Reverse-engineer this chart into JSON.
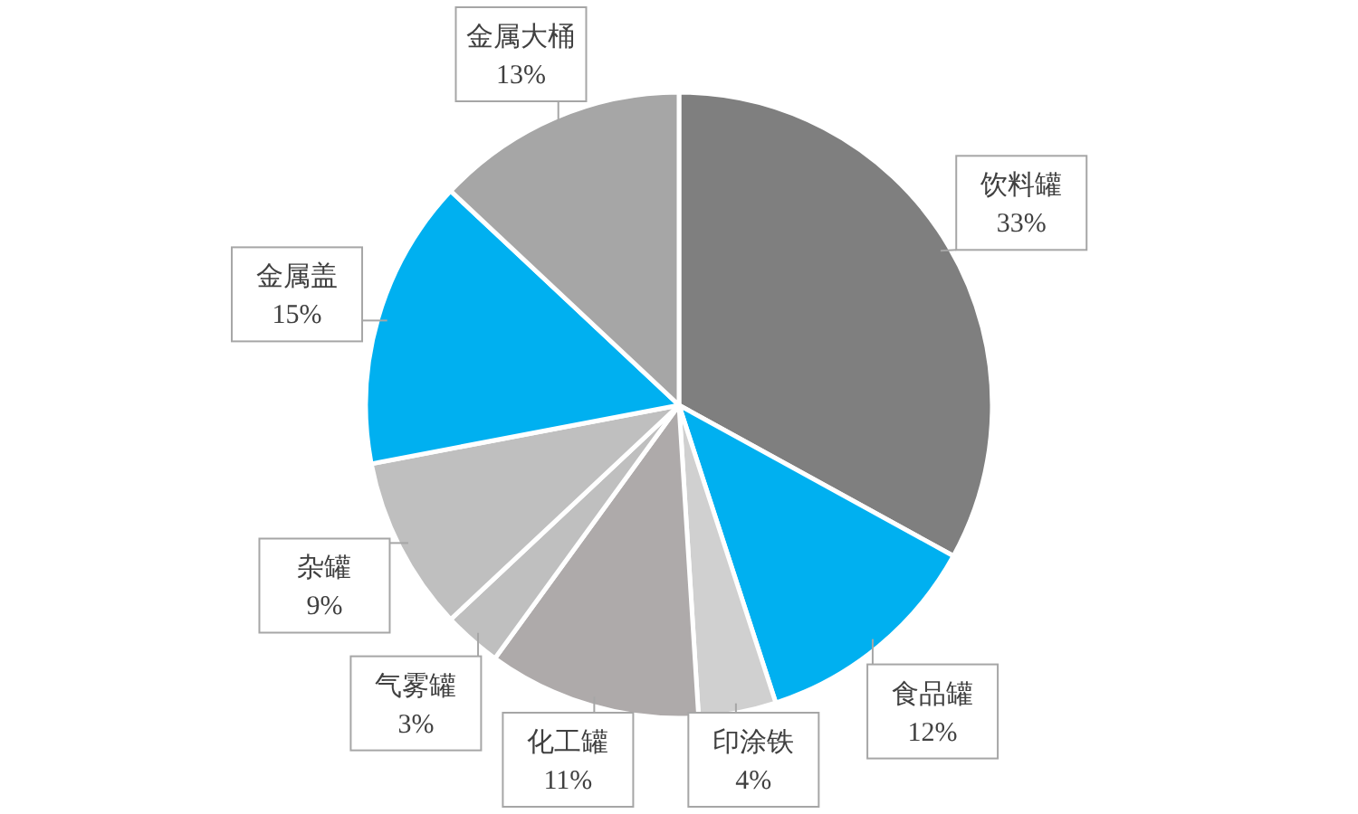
{
  "chart_data": {
    "type": "pie",
    "categories": [
      "饮料罐",
      "食品罐",
      "印涂铁",
      "化工罐",
      "气雾罐",
      "杂罐",
      "金属盖",
      "金属大桶"
    ],
    "values": [
      33,
      12,
      4,
      11,
      3,
      9,
      15,
      13
    ],
    "colors": [
      "#7f7f7f",
      "#00b0f0",
      "#d0d0d0",
      "#aeaaaa",
      "#bfbfbf",
      "#bfbfbf",
      "#00b0f0",
      "#a6a6a6"
    ],
    "value_labels": [
      "33%",
      "12%",
      "4%",
      "11%",
      "3%",
      "9%",
      "15%",
      "13%"
    ]
  }
}
